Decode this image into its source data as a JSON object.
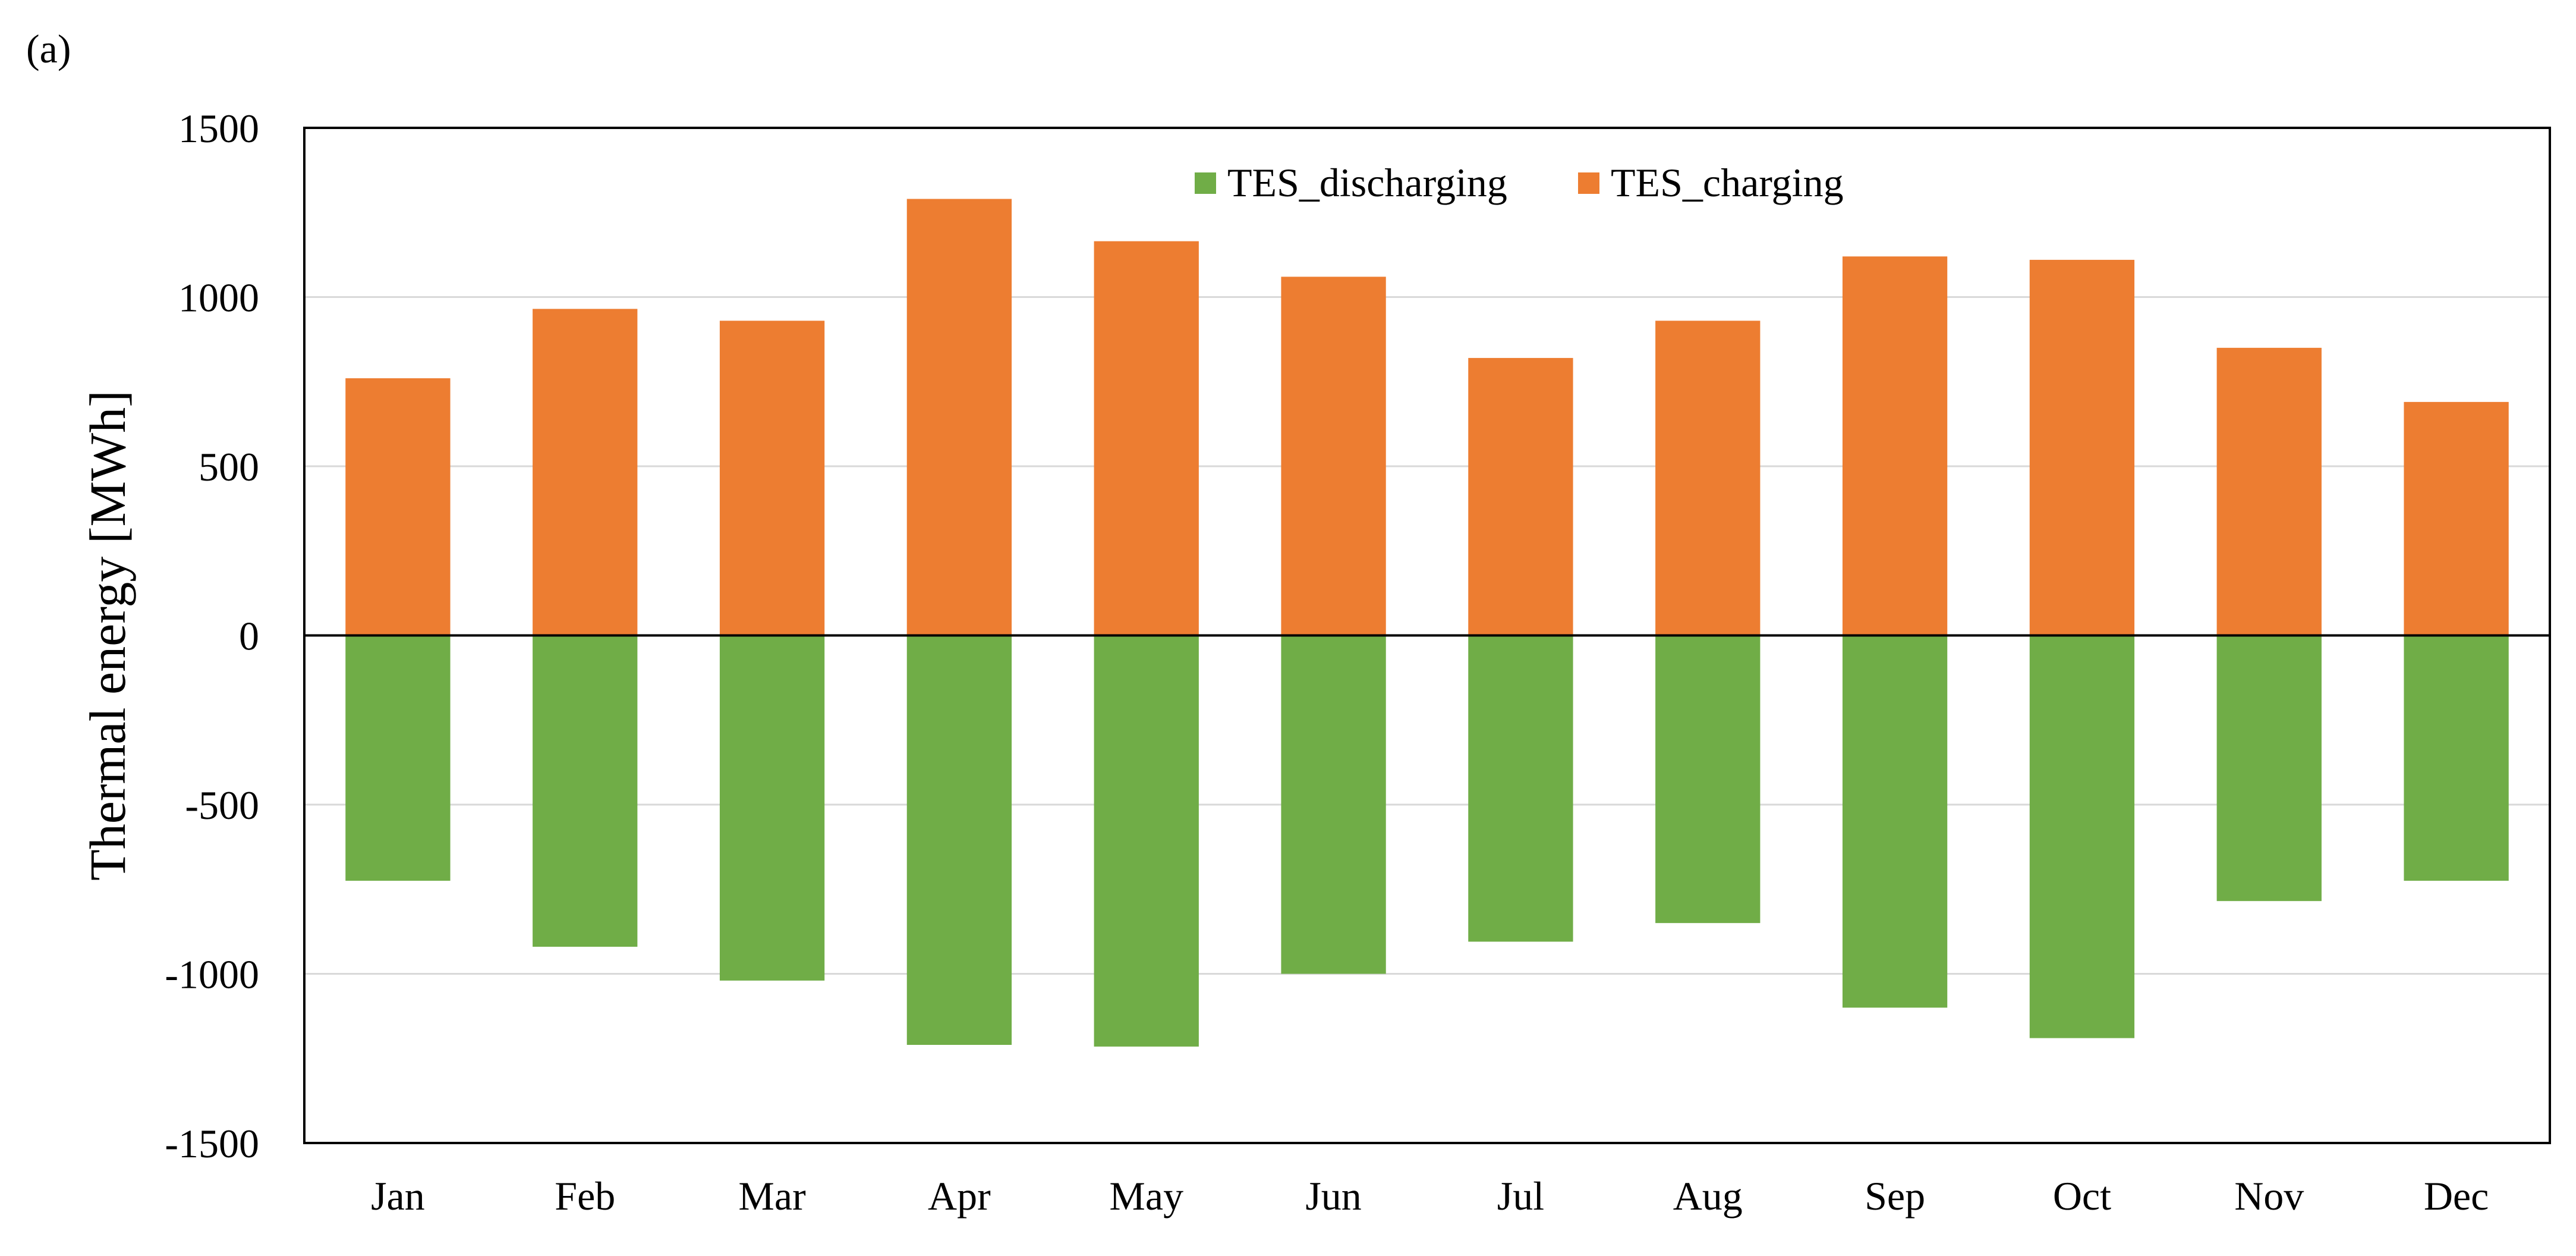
{
  "panel_label": "(a)",
  "chart_data": {
    "type": "bar",
    "stacked": true,
    "title": "",
    "xlabel": "",
    "ylabel": "Thermal energy [MWh]",
    "categories": [
      "Jan",
      "Feb",
      "Mar",
      "Apr",
      "May",
      "Jun",
      "Jul",
      "Aug",
      "Sep",
      "Oct",
      "Nov",
      "Dec"
    ],
    "series": [
      {
        "name": "TES_discharging",
        "color": "#70ad47",
        "values": [
          -725,
          -920,
          -1020,
          -1210,
          -1215,
          -1000,
          -905,
          -850,
          -1100,
          -1190,
          -785,
          -725
        ]
      },
      {
        "name": "TES_charging",
        "color": "#ed7d31",
        "values": [
          760,
          965,
          930,
          1290,
          1165,
          1060,
          820,
          930,
          1120,
          1110,
          850,
          690
        ]
      }
    ],
    "ylim": [
      -1500,
      1500
    ],
    "yticks": [
      -1500,
      -1000,
      -500,
      0,
      500,
      1000,
      1500
    ],
    "ytick_labels": [
      "-1500",
      "-1000",
      "-500",
      "0",
      "500",
      "1000",
      "1500"
    ],
    "grid": true,
    "legend_position": "top-center"
  }
}
